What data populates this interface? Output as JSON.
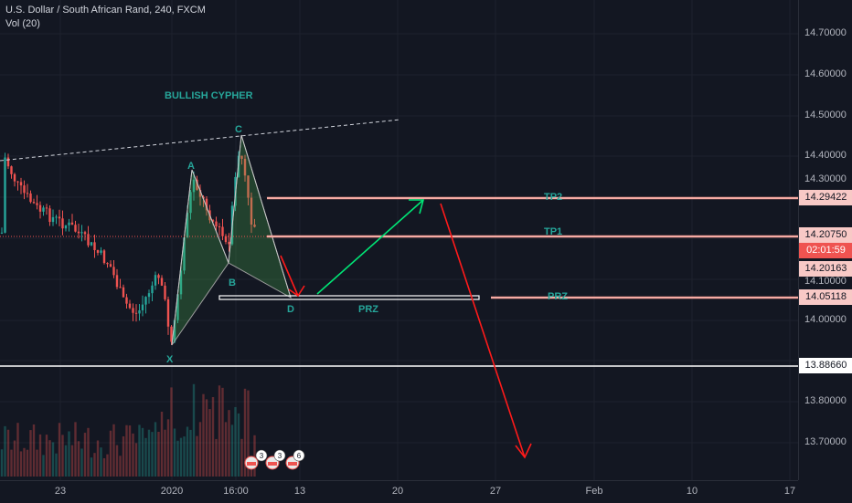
{
  "legend": {
    "title": "U.S. Dollar / South African Rand, 240, FXCM",
    "volume": "Vol (20)"
  },
  "annotations": {
    "pattern_title": "BULLISH CYPHER",
    "point_x": "X",
    "point_a": "A",
    "point_b": "B",
    "point_c": "C",
    "point_d": "D",
    "tp2": "TP2",
    "tp1": "TP1",
    "prz_right": "PRZ",
    "prz_left": "PRZ"
  },
  "price_axis": {
    "ticks": [
      "14.70000",
      "14.60000",
      "14.50000",
      "14.40000",
      "14.30000",
      "14.10000",
      "14.00000",
      "13.80000",
      "13.70000"
    ],
    "tags": {
      "tp2": "14.29422",
      "current": "14.20750",
      "countdown": "02:01:59",
      "tp1_level": "14.20163",
      "prz": "14.05118",
      "low": "13.88660"
    }
  },
  "time_axis": {
    "ticks": [
      "23",
      "2020",
      "16:00",
      "13",
      "20",
      "27",
      "Feb",
      "10",
      "17"
    ]
  },
  "event_badges": [
    "3",
    "3",
    "6"
  ],
  "colors": {
    "background": "#131722",
    "up": "#26a69a",
    "down": "#ef5350",
    "pattern": "#4caf50",
    "level_line": "#f8a5a5",
    "arrow_green": "#00e676",
    "arrow_red": "#ff1a1a",
    "teal_text": "#26a69a"
  }
}
